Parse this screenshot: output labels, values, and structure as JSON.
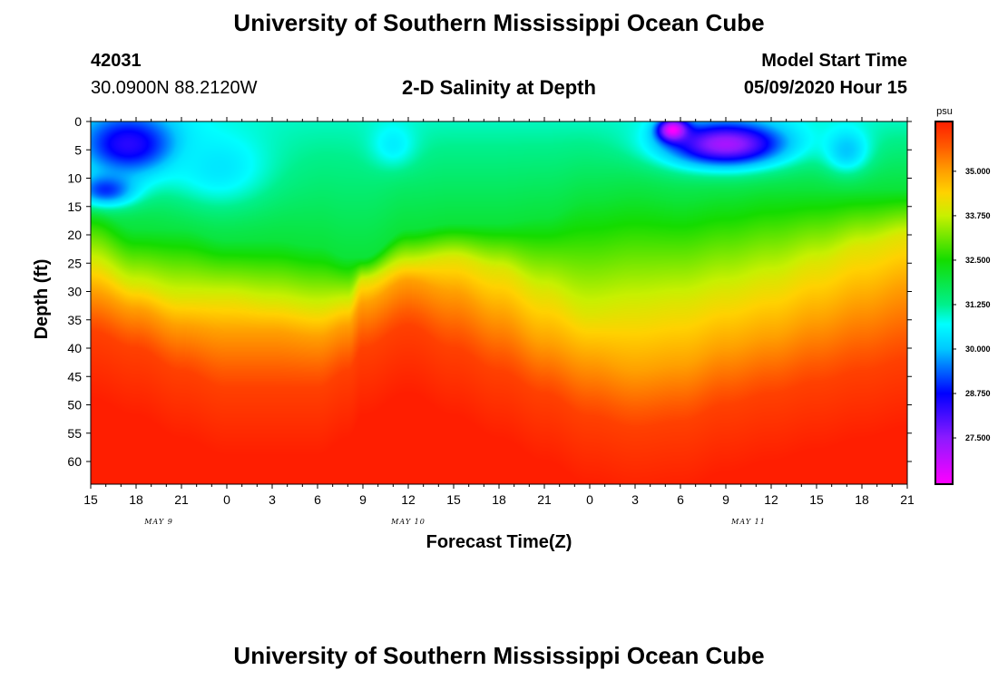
{
  "page": {
    "main_title": "University of Southern Mississippi Ocean Cube",
    "footer_title": "University of Southern Mississippi Ocean Cube",
    "station_id": "42031",
    "station_coords": "30.0900N 88.2120W",
    "model_label": "Model Start Time",
    "model_time": "05/09/2020 Hour 15"
  },
  "chart_data": {
    "type": "heatmap",
    "title": "2-D Salinity at Depth",
    "xlabel": "Forecast Time(Z)",
    "ylabel": "Depth (ft)",
    "x_range_hours": [
      0,
      54
    ],
    "y_range_ft": [
      0,
      64
    ],
    "x_ticks": [
      "15",
      "18",
      "21",
      "0",
      "3",
      "6",
      "9",
      "12",
      "15",
      "18",
      "21",
      "0",
      "3",
      "6",
      "9",
      "12",
      "15",
      "18",
      "21"
    ],
    "y_ticks": [
      "0",
      "5",
      "10",
      "15",
      "20",
      "25",
      "30",
      "35",
      "40",
      "45",
      "50",
      "55",
      "60"
    ],
    "date_labels": [
      {
        "text": "MAY 9",
        "hour": 4.5
      },
      {
        "text": "MAY 10",
        "hour": 21
      },
      {
        "text": "MAY 11",
        "hour": 43.5
      }
    ],
    "colorbar": {
      "unit": "psu",
      "min": 26.2,
      "max": 36.4,
      "labels": [
        "35.000",
        "33.750",
        "32.500",
        "31.250",
        "30.000",
        "28.750",
        "27.500"
      ],
      "label_values": [
        35.0,
        33.75,
        32.5,
        31.25,
        30.0,
        28.75,
        27.5
      ],
      "stops": [
        {
          "value": 26.2,
          "color": "#ff00ff"
        },
        {
          "value": 27.5,
          "color": "#8c1aff"
        },
        {
          "value": 28.75,
          "color": "#0000ff"
        },
        {
          "value": 30.0,
          "color": "#00c8ff"
        },
        {
          "value": 30.7,
          "color": "#00ffff"
        },
        {
          "value": 31.25,
          "color": "#00f08c"
        },
        {
          "value": 32.5,
          "color": "#14dc00"
        },
        {
          "value": 33.75,
          "color": "#c8f000"
        },
        {
          "value": 34.4,
          "color": "#ffd200"
        },
        {
          "value": 35.0,
          "color": "#ffa000"
        },
        {
          "value": 35.7,
          "color": "#ff5a00"
        },
        {
          "value": 36.4,
          "color": "#ff1e00"
        }
      ]
    },
    "isohaline_depths": {
      "hours": [
        0,
        3,
        6,
        9,
        12,
        15,
        17,
        18,
        21,
        24,
        27,
        30,
        33,
        36,
        39,
        42,
        45,
        48,
        51,
        54
      ],
      "s32_ft": [
        15,
        19,
        19,
        21,
        21,
        22,
        24,
        24,
        19,
        18,
        18,
        17,
        14,
        13,
        14,
        13,
        12,
        12,
        12,
        12
      ],
      "s34_ft": [
        25,
        29,
        31,
        31,
        32,
        33,
        32,
        28,
        25,
        24,
        26,
        30,
        34,
        33,
        32,
        30,
        28,
        25,
        22,
        20
      ],
      "s35_ft": [
        30,
        33,
        36,
        37,
        37,
        38,
        36,
        32,
        28,
        30,
        34,
        39,
        42,
        44,
        43,
        40,
        38,
        35,
        32,
        29
      ],
      "s36_ft": [
        37,
        40,
        44,
        47,
        47,
        47,
        44,
        40,
        36,
        40,
        44,
        48,
        52,
        54,
        53,
        50,
        48,
        46,
        44,
        42
      ]
    },
    "fresh_lenses": [
      {
        "hour": 2.5,
        "depth_ft": 4,
        "hour_spread": 3.5,
        "depth_spread": 6,
        "min_psu": 28.4
      },
      {
        "hour": 1.0,
        "depth_ft": 12,
        "hour_spread": 2.0,
        "depth_spread": 3,
        "min_psu": 29.0
      },
      {
        "hour": 8.5,
        "depth_ft": 8,
        "hour_spread": 3.5,
        "depth_spread": 7,
        "min_psu": 30.4
      },
      {
        "hour": 20.0,
        "depth_ft": 4,
        "hour_spread": 1.5,
        "depth_spread": 4,
        "min_psu": 30.5
      },
      {
        "hour": 42.0,
        "depth_ft": 4,
        "hour_spread": 4.0,
        "depth_spread": 4,
        "min_psu": 27.2
      },
      {
        "hour": 38.5,
        "depth_ft": 1.5,
        "hour_spread": 1.0,
        "depth_spread": 2,
        "min_psu": 26.2
      },
      {
        "hour": 50.0,
        "depth_ft": 5,
        "hour_spread": 1.5,
        "depth_spread": 4,
        "min_psu": 30.0
      }
    ]
  }
}
